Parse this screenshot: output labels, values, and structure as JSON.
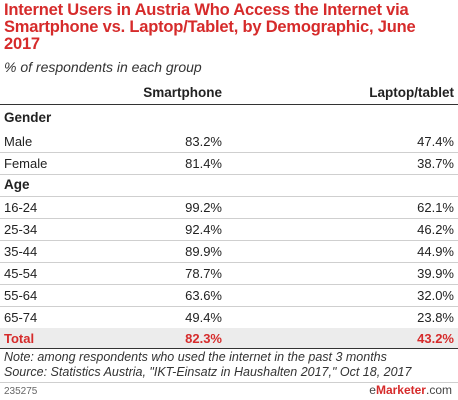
{
  "title": "Internet Users in Austria Who Access the Internet via Smartphone vs. Laptop/Tablet, by Demographic, June 2017",
  "subtitle": "% of respondents in each group",
  "columns": {
    "col1": "Smartphone",
    "col2": "Laptop/tablet"
  },
  "sections": {
    "gender": "Gender",
    "age": "Age"
  },
  "chart_data": {
    "type": "table",
    "title": "Internet Users in Austria Who Access the Internet via Smartphone vs. Laptop/Tablet, by Demographic, June 2017",
    "subtitle": "% of respondents in each group",
    "columns": [
      "Smartphone",
      "Laptop/tablet"
    ],
    "groups": [
      {
        "name": "Gender",
        "rows": [
          {
            "label": "Male",
            "values": [
              "83.2%",
              "47.4%"
            ]
          },
          {
            "label": "Female",
            "values": [
              "81.4%",
              "38.7%"
            ]
          }
        ]
      },
      {
        "name": "Age",
        "rows": [
          {
            "label": "16-24",
            "values": [
              "99.2%",
              "62.1%"
            ]
          },
          {
            "label": "25-34",
            "values": [
              "92.4%",
              "46.2%"
            ]
          },
          {
            "label": "35-44",
            "values": [
              "89.9%",
              "44.9%"
            ]
          },
          {
            "label": "45-54",
            "values": [
              "78.7%",
              "39.9%"
            ]
          },
          {
            "label": "55-64",
            "values": [
              "63.6%",
              "32.0%"
            ]
          },
          {
            "label": "65-74",
            "values": [
              "49.4%",
              "23.8%"
            ]
          }
        ]
      }
    ],
    "total": {
      "label": "Total",
      "values": [
        "82.3%",
        "43.2%"
      ]
    }
  },
  "note_line1": "Note: among respondents who used the internet in the past 3 months",
  "note_line2": "Source: Statistics Austria, \"IKT-Einsatz in Haushalten 2017,\" Oct 18, 2017",
  "chart_id": "235275",
  "brand": {
    "prefix": "e",
    "name": "Marketer",
    "suffix": ".com"
  },
  "colors": {
    "accent": "#d62b2b",
    "shade": "#ececec",
    "text": "#222222"
  }
}
